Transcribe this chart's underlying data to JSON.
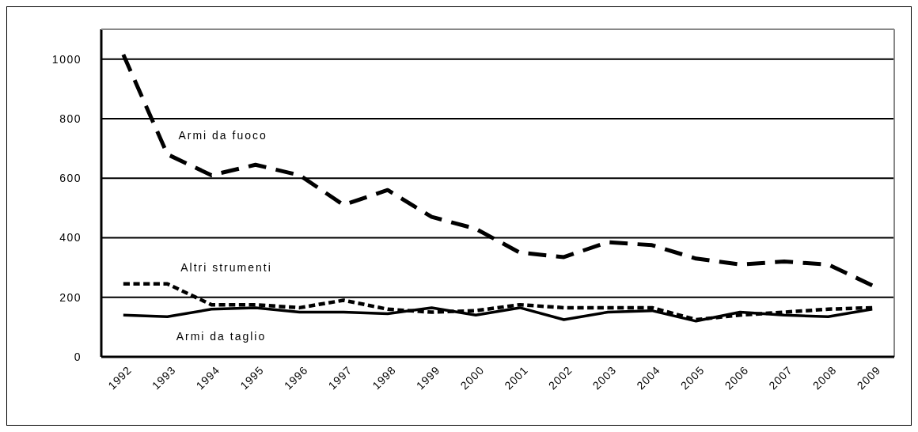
{
  "chart_data": {
    "type": "line",
    "categories": [
      "1992",
      "1993",
      "1994",
      "1995",
      "1996",
      "1997",
      "1998",
      "1999",
      "2000",
      "2001",
      "2002",
      "2003",
      "2004",
      "2005",
      "2006",
      "2007",
      "2008",
      "2009"
    ],
    "series": [
      {
        "name": "Armi da fuoco",
        "color": "#000000",
        "line_style": "dashed",
        "values": [
          1015,
          680,
          610,
          645,
          610,
          510,
          560,
          470,
          430,
          350,
          335,
          385,
          375,
          330,
          310,
          320,
          310,
          240
        ]
      },
      {
        "name": "Altri strumenti",
        "color": "#000000",
        "line_style": "dotted",
        "values": [
          245,
          245,
          175,
          175,
          165,
          190,
          160,
          150,
          155,
          175,
          165,
          165,
          165,
          125,
          140,
          150,
          160,
          165
        ]
      },
      {
        "name": "Armi da taglio",
        "color": "#000000",
        "line_style": "solid",
        "values": [
          140,
          135,
          160,
          165,
          150,
          150,
          145,
          165,
          140,
          165,
          125,
          150,
          155,
          120,
          150,
          140,
          135,
          160
        ]
      }
    ],
    "ylim": [
      0,
      1100
    ],
    "yticks": [
      0,
      200,
      400,
      600,
      800,
      1000
    ],
    "grid": "y",
    "legend": false,
    "marker": "none"
  }
}
